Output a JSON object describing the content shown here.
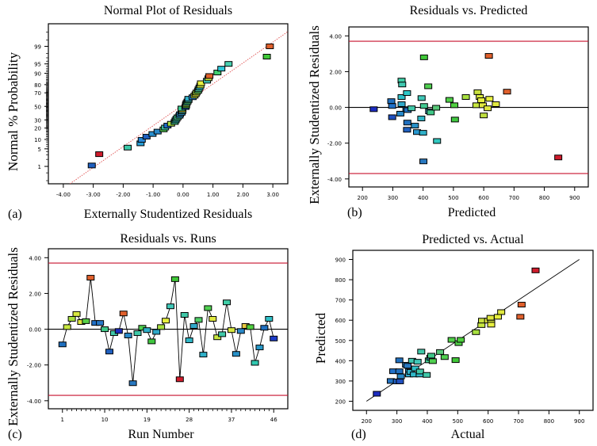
{
  "chart_data": [
    {
      "id": "a",
      "type": "scatter",
      "panel_label": "(a)",
      "title": "Normal Plot of Residuals",
      "xlabel": "Externally Studentized Residuals",
      "ylabel": "Normal % Probability",
      "xlim": [
        -4.5,
        3.5
      ],
      "xticks": [
        -4,
        -3,
        -2,
        -1,
        0,
        1,
        2,
        3
      ],
      "xtick_labels": [
        "-4.00",
        "-3.00",
        "-2.00",
        "-1.00",
        "0.00",
        "1.00",
        "2.00",
        "3.00"
      ],
      "ytick_labels": [
        "1",
        "5",
        "10",
        "20",
        "30",
        "50",
        "70",
        "80",
        "90",
        "95",
        "99"
      ],
      "yticks": [
        1,
        5,
        10,
        20,
        30,
        50,
        70,
        80,
        90,
        95,
        99
      ],
      "reference_line": {
        "color": "#e05050",
        "style": "dotted"
      },
      "points": [
        {
          "x": -3.05,
          "p": 1.1,
          "color": "#1f5fbf"
        },
        {
          "x": -2.8,
          "p": 3.2,
          "color": "#d01c2c"
        },
        {
          "x": -1.85,
          "p": 5.5,
          "color": "#3cc8a8"
        },
        {
          "x": -1.42,
          "p": 7.6,
          "color": "#28a0d8"
        },
        {
          "x": -1.38,
          "p": 9.7,
          "color": "#2888d8"
        },
        {
          "x": -1.22,
          "p": 12.0,
          "color": "#1f5fbf"
        },
        {
          "x": -1.02,
          "p": 14.2,
          "color": "#2890d0"
        },
        {
          "x": -0.85,
          "p": 16.4,
          "color": "#2888c8"
        },
        {
          "x": -0.65,
          "p": 18.6,
          "color": "#58d858"
        },
        {
          "x": -0.6,
          "p": 20.6,
          "color": "#40c8b0"
        },
        {
          "x": -0.52,
          "p": 22.8,
          "color": "#1f6cc8"
        },
        {
          "x": -0.4,
          "p": 25.0,
          "color": "#a8e040"
        },
        {
          "x": -0.28,
          "p": 27.2,
          "color": "#40c890"
        },
        {
          "x": -0.25,
          "p": 29.4,
          "color": "#30b8b8"
        },
        {
          "x": -0.22,
          "p": 31.5,
          "color": "#40c8a0"
        },
        {
          "x": -0.18,
          "p": 33.6,
          "color": "#48d090"
        },
        {
          "x": -0.12,
          "p": 35.8,
          "color": "#30a8c8"
        },
        {
          "x": -0.1,
          "p": 38.0,
          "color": "#2888c8"
        },
        {
          "x": -0.05,
          "p": 40.2,
          "color": "#30a0d0"
        },
        {
          "x": -0.03,
          "p": 42.4,
          "color": "#40b8b8"
        },
        {
          "x": -0.02,
          "p": 44.6,
          "color": "#e8f040"
        },
        {
          "x": -0.05,
          "p": 46.7,
          "color": "#40c890"
        },
        {
          "x": 0.08,
          "p": 48.9,
          "color": "#2070d0"
        },
        {
          "x": 0.1,
          "p": 51.0,
          "color": "#58d050"
        },
        {
          "x": 0.1,
          "p": 53.0,
          "color": "#a8e040"
        },
        {
          "x": 0.12,
          "p": 55.2,
          "color": "#40c8a8"
        },
        {
          "x": 0.15,
          "p": 57.4,
          "color": "#48d070"
        },
        {
          "x": 0.18,
          "p": 59.6,
          "color": "#40c8b0"
        },
        {
          "x": 0.18,
          "p": 61.6,
          "color": "#30b0c8"
        },
        {
          "x": 0.32,
          "p": 63.8,
          "color": "#2888d8"
        },
        {
          "x": 0.38,
          "p": 66.0,
          "color": "#c8e840"
        },
        {
          "x": 0.42,
          "p": 68.2,
          "color": "#e0e838"
        },
        {
          "x": 0.45,
          "p": 70.4,
          "color": "#a8e040"
        },
        {
          "x": 0.5,
          "p": 72.5,
          "color": "#58d060"
        },
        {
          "x": 0.52,
          "p": 74.6,
          "color": "#48c8a8"
        },
        {
          "x": 0.55,
          "p": 76.8,
          "color": "#30c0c8"
        },
        {
          "x": 0.58,
          "p": 79.0,
          "color": "#c0e040"
        },
        {
          "x": 0.6,
          "p": 81.5,
          "color": "#e8f040"
        },
        {
          "x": 0.8,
          "p": 84.0,
          "color": "#40d0c0"
        },
        {
          "x": 0.85,
          "p": 86.2,
          "color": "#c8e840"
        },
        {
          "x": 0.88,
          "p": 88.0,
          "color": "#e0602c"
        },
        {
          "x": 1.15,
          "p": 90.5,
          "color": "#40d070"
        },
        {
          "x": 1.28,
          "p": 92.8,
          "color": "#30c8d8"
        },
        {
          "x": 1.52,
          "p": 95.0,
          "color": "#48d0b0"
        },
        {
          "x": 2.8,
          "p": 97.3,
          "color": "#40c838"
        },
        {
          "x": 2.9,
          "p": 99.0,
          "color": "#e0602c"
        }
      ]
    },
    {
      "id": "b",
      "type": "scatter",
      "panel_label": "(b)",
      "title": "Residuals vs. Predicted",
      "xlabel": "Predicted",
      "ylabel": "Externally Studentized Residuals",
      "xlim": [
        155,
        945
      ],
      "ylim": [
        -4.45,
        4.5
      ],
      "xticks": [
        200,
        300,
        400,
        500,
        600,
        700,
        800,
        900
      ],
      "xtick_labels": [
        "200",
        "300",
        "400",
        "500",
        "600",
        "700",
        "800",
        "900"
      ],
      "yticks": [
        -4,
        -2,
        0,
        2,
        4
      ],
      "ytick_labels": [
        "-4.00",
        "-2.00",
        "0.00",
        "2.00",
        "4.00"
      ],
      "limit_lines": [
        3.7,
        -3.7
      ],
      "limit_color": "#c8102e",
      "points": [
        {
          "x": 237,
          "y": -0.1,
          "color": "#1c2cc0"
        },
        {
          "x": 295,
          "y": 0.35,
          "color": "#2070c0"
        },
        {
          "x": 298,
          "y": 0.08,
          "color": "#2070c8"
        },
        {
          "x": 298,
          "y": -0.55,
          "color": "#2050c0"
        },
        {
          "x": 325,
          "y": -0.35,
          "color": "#2888c8"
        },
        {
          "x": 329,
          "y": 1.5,
          "color": "#40d0a8"
        },
        {
          "x": 331,
          "y": 1.28,
          "color": "#40c8b0"
        },
        {
          "x": 329,
          "y": 0.58,
          "color": "#30c0c8"
        },
        {
          "x": 329,
          "y": 0.18,
          "color": "#30a8c8"
        },
        {
          "x": 347,
          "y": 0.8,
          "color": "#30c8c8"
        },
        {
          "x": 345,
          "y": -0.1,
          "color": "#2888c8"
        },
        {
          "x": 349,
          "y": -0.15,
          "color": "#2070c0"
        },
        {
          "x": 348,
          "y": -0.85,
          "color": "#2070c0"
        },
        {
          "x": 347,
          "y": -1.25,
          "color": "#2060c0"
        },
        {
          "x": 362,
          "y": -0.05,
          "color": "#40c8a8"
        },
        {
          "x": 373,
          "y": -1.02,
          "color": "#2890c8"
        },
        {
          "x": 380,
          "y": -1.38,
          "color": "#2898d0"
        },
        {
          "x": 395,
          "y": 0.52,
          "color": "#40c8b8"
        },
        {
          "x": 394,
          "y": -0.62,
          "color": "#30b8c8"
        },
        {
          "x": 400,
          "y": -1.42,
          "color": "#30b0c8"
        },
        {
          "x": 401,
          "y": -3.02,
          "color": "#2878c0"
        },
        {
          "x": 403,
          "y": 2.8,
          "color": "#40c838"
        },
        {
          "x": 403,
          "y": 0.08,
          "color": "#40c890"
        },
        {
          "x": 417,
          "y": 1.18,
          "color": "#50d050"
        },
        {
          "x": 420,
          "y": -0.22,
          "color": "#3898b8"
        },
        {
          "x": 425,
          "y": -0.28,
          "color": "#40c888"
        },
        {
          "x": 443,
          "y": -0.02,
          "color": "#58c878"
        },
        {
          "x": 446,
          "y": -1.88,
          "color": "#30c8c0"
        },
        {
          "x": 487,
          "y": 0.42,
          "color": "#50d048"
        },
        {
          "x": 503,
          "y": 0.12,
          "color": "#50d040"
        },
        {
          "x": 505,
          "y": -0.68,
          "color": "#40c840"
        },
        {
          "x": 541,
          "y": 0.58,
          "color": "#a8e040"
        },
        {
          "x": 576,
          "y": 0.12,
          "color": "#c8e840"
        },
        {
          "x": 580,
          "y": 0.85,
          "color": "#c8e040"
        },
        {
          "x": 587,
          "y": 0.58,
          "color": "#d8e840"
        },
        {
          "x": 592,
          "y": 0.4,
          "color": "#e8f040"
        },
        {
          "x": 597,
          "y": 0.12,
          "color": "#e0e840"
        },
        {
          "x": 600,
          "y": -0.45,
          "color": "#c0e040"
        },
        {
          "x": 613,
          "y": -0.05,
          "color": "#e0e840"
        },
        {
          "x": 617,
          "y": 2.88,
          "color": "#e0602c"
        },
        {
          "x": 619,
          "y": 0.48,
          "color": "#e8f040"
        },
        {
          "x": 640,
          "y": 0.18,
          "color": "#e0e840"
        },
        {
          "x": 677,
          "y": 0.88,
          "color": "#e0602c"
        },
        {
          "x": 846,
          "y": -2.8,
          "color": "#d01c2c"
        }
      ]
    },
    {
      "id": "c",
      "type": "line",
      "panel_label": "(c)",
      "title": "Residuals vs. Runs",
      "xlabel": "Run Number",
      "ylabel": "Externally Studentized Residuals",
      "xlim": [
        -2,
        49
      ],
      "ylim": [
        -4.45,
        4.5
      ],
      "xticks": [
        1,
        10,
        19,
        28,
        37,
        46
      ],
      "xtick_labels": [
        "1",
        "10",
        "19",
        "28",
        "37",
        "46"
      ],
      "yticks": [
        -4,
        -2,
        0,
        2,
        4
      ],
      "ytick_labels": [
        "-4.00",
        "-2.00",
        "0.00",
        "2.00",
        "4.00"
      ],
      "limit_lines": [
        3.7,
        -3.7
      ],
      "limit_color": "#c8102e",
      "runs": [
        1,
        2,
        3,
        4,
        5,
        6,
        7,
        8,
        9,
        10,
        11,
        12,
        13,
        14,
        15,
        16,
        17,
        18,
        19,
        20,
        21,
        22,
        23,
        24,
        25,
        26,
        27,
        28,
        29,
        30,
        31,
        32,
        33,
        34,
        35,
        36,
        37,
        38,
        39,
        40,
        41,
        42,
        43,
        44,
        45,
        46
      ],
      "residuals": [
        -0.85,
        0.12,
        0.58,
        0.85,
        0.4,
        0.45,
        2.88,
        0.35,
        0.35,
        0.0,
        -1.25,
        -0.22,
        -0.1,
        0.88,
        -0.35,
        -3.02,
        -0.22,
        0.08,
        -0.05,
        -0.68,
        -0.15,
        0.12,
        0.48,
        1.28,
        2.8,
        -2.8,
        0.8,
        -0.62,
        0.18,
        0.52,
        -1.42,
        1.18,
        0.58,
        -0.45,
        -0.28,
        1.5,
        -0.05,
        -1.38,
        -0.1,
        0.18,
        0.12,
        -1.88,
        -1.02,
        0.08,
        0.58,
        -0.52
      ],
      "colors": [
        "#2070c0",
        "#c8e840",
        "#a8e040",
        "#d8e840",
        "#e0e840",
        "#58d048",
        "#e0602c",
        "#2070c8",
        "#2878c8",
        "#40c888",
        "#2060c0",
        "#40c8a8",
        "#1c2cc0",
        "#e0602c",
        "#2888c8",
        "#2878c0",
        "#40c8a8",
        "#50d050",
        "#30b0c8",
        "#40c840",
        "#30a8c8",
        "#a8e040",
        "#e8f040",
        "#40c8b8",
        "#40c838",
        "#d01c2c",
        "#40c8a8",
        "#30b8c8",
        "#30a8c8",
        "#50d068",
        "#30b0c8",
        "#50d050",
        "#e0e840",
        "#c8e840",
        "#40c8a8",
        "#40d0a8",
        "#d8e840",
        "#2890c8",
        "#2888c8",
        "#e8c840",
        "#50d040",
        "#30c8b0",
        "#2898c8",
        "#2070c0",
        "#30c0c8",
        "#1c3cc8"
      ]
    },
    {
      "id": "d",
      "type": "scatter",
      "panel_label": "(d)",
      "title": "Predicted vs. Actual",
      "xlabel": "Actual",
      "ylabel": "Predicted",
      "xlim": [
        155,
        945
      ],
      "ylim": [
        155,
        945
      ],
      "xticks": [
        200,
        300,
        400,
        500,
        600,
        700,
        800,
        900
      ],
      "xtick_labels": [
        "200",
        "300",
        "400",
        "500",
        "600",
        "700",
        "800",
        "900"
      ],
      "yticks": [
        200,
        300,
        400,
        500,
        600,
        700,
        800,
        900
      ],
      "ytick_labels": [
        "200",
        "300",
        "400",
        "500",
        "600",
        "700",
        "800",
        "900"
      ],
      "reference_line": {
        "from": [
          200,
          200
        ],
        "to": [
          900,
          900
        ],
        "color": "#000000"
      },
      "points": [
        {
          "x": 234,
          "y": 237,
          "color": "#1c2cc0"
        },
        {
          "x": 280,
          "y": 300,
          "color": "#2070c0"
        },
        {
          "x": 288,
          "y": 348,
          "color": "#2070c8"
        },
        {
          "x": 300,
          "y": 298,
          "color": "#2060c0"
        },
        {
          "x": 308,
          "y": 402,
          "color": "#2070c0"
        },
        {
          "x": 308,
          "y": 348,
          "color": "#2070c0"
        },
        {
          "x": 310,
          "y": 298,
          "color": "#2050c0"
        },
        {
          "x": 313,
          "y": 323,
          "color": "#2888c8"
        },
        {
          "x": 330,
          "y": 380,
          "color": "#2880c8"
        },
        {
          "x": 335,
          "y": 375,
          "color": "#2878c0"
        },
        {
          "x": 340,
          "y": 348,
          "color": "#2890c8"
        },
        {
          "x": 340,
          "y": 332,
          "color": "#30a8c8"
        },
        {
          "x": 345,
          "y": 345,
          "color": "#30b0c8"
        },
        {
          "x": 350,
          "y": 400,
          "color": "#40c8b0"
        },
        {
          "x": 356,
          "y": 332,
          "color": "#30b8c8"
        },
        {
          "x": 360,
          "y": 362,
          "color": "#30c0c8"
        },
        {
          "x": 368,
          "y": 395,
          "color": "#40c8b8"
        },
        {
          "x": 375,
          "y": 332,
          "color": "#30b8c8"
        },
        {
          "x": 376,
          "y": 347,
          "color": "#40c8a8"
        },
        {
          "x": 380,
          "y": 445,
          "color": "#40c8a8"
        },
        {
          "x": 398,
          "y": 330,
          "color": "#40c8a8"
        },
        {
          "x": 405,
          "y": 402,
          "color": "#40c890"
        },
        {
          "x": 410,
          "y": 415,
          "color": "#3898b8"
        },
        {
          "x": 413,
          "y": 425,
          "color": "#40c888"
        },
        {
          "x": 418,
          "y": 398,
          "color": "#50d050"
        },
        {
          "x": 442,
          "y": 443,
          "color": "#58c878"
        },
        {
          "x": 457,
          "y": 418,
          "color": "#50d050"
        },
        {
          "x": 480,
          "y": 503,
          "color": "#50d048"
        },
        {
          "x": 493,
          "y": 403,
          "color": "#40c838"
        },
        {
          "x": 503,
          "y": 487,
          "color": "#50d048"
        },
        {
          "x": 510,
          "y": 503,
          "color": "#50d040"
        },
        {
          "x": 560,
          "y": 541,
          "color": "#a8e040"
        },
        {
          "x": 578,
          "y": 576,
          "color": "#c8e840"
        },
        {
          "x": 580,
          "y": 598,
          "color": "#c8e040"
        },
        {
          "x": 600,
          "y": 598,
          "color": "#e0e840"
        },
        {
          "x": 608,
          "y": 612,
          "color": "#e0e840"
        },
        {
          "x": 610,
          "y": 588,
          "color": "#d8e840"
        },
        {
          "x": 610,
          "y": 578,
          "color": "#e8f040"
        },
        {
          "x": 632,
          "y": 617,
          "color": "#e8f040"
        },
        {
          "x": 643,
          "y": 640,
          "color": "#e0e840"
        },
        {
          "x": 706,
          "y": 617,
          "color": "#e0602c"
        },
        {
          "x": 710,
          "y": 677,
          "color": "#e0602c"
        },
        {
          "x": 756,
          "y": 846,
          "color": "#d01c2c"
        }
      ]
    }
  ]
}
